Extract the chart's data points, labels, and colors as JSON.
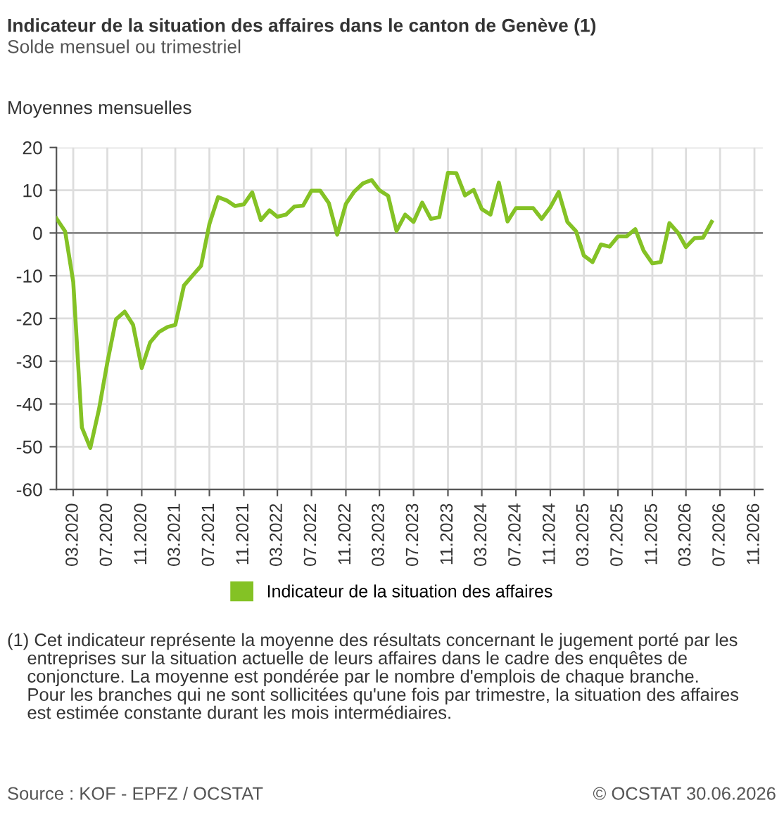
{
  "chart_data": {
    "type": "line",
    "title": "Indicateur de la situation des affaires dans le canton de Genève (1)",
    "subtitle": "Solde mensuel ou trimestriel",
    "ylabel": "Moyennes mensuelles",
    "x": [
      "2020-01",
      "2020-02",
      "2020-03",
      "2020-04",
      "2020-05",
      "2020-06",
      "2020-07",
      "2020-08",
      "2020-09",
      "2020-10",
      "2020-11",
      "2020-12",
      "2021-01",
      "2021-02",
      "2021-03",
      "2021-04",
      "2021-05",
      "2021-06",
      "2021-07",
      "2021-08",
      "2021-09",
      "2021-10",
      "2021-11",
      "2021-12",
      "2022-01",
      "2022-02",
      "2022-03",
      "2022-04",
      "2022-05",
      "2022-06",
      "2022-07",
      "2022-08",
      "2022-09",
      "2022-10",
      "2022-11",
      "2022-12",
      "2023-01",
      "2023-02",
      "2023-03",
      "2023-04",
      "2023-05",
      "2023-06",
      "2023-07",
      "2023-08",
      "2023-09",
      "2023-10",
      "2023-11",
      "2023-12",
      "2024-01",
      "2024-02",
      "2024-03",
      "2024-04",
      "2024-05",
      "2024-06",
      "2024-07",
      "2024-08",
      "2024-09",
      "2024-10",
      "2024-11",
      "2024-12",
      "2025-01",
      "2025-02",
      "2025-03",
      "2025-04",
      "2025-05",
      "2025-06",
      "2025-07",
      "2025-08",
      "2025-09",
      "2025-10",
      "2025-11",
      "2025-12",
      "2026-01",
      "2026-02",
      "2026-03",
      "2026-04",
      "2026-05",
      "2026-06"
    ],
    "series": [
      {
        "name": "Indicateur de la situation des affaires",
        "color": "#84c225",
        "values": [
          3.4,
          0.4,
          -11.4,
          -45.5,
          -50.3,
          -41.3,
          -30.3,
          -20.2,
          -18.4,
          -21.5,
          -31.6,
          -25.6,
          -23.2,
          -22.0,
          -21.5,
          -12.3,
          -10.0,
          -7.7,
          2.1,
          8.4,
          7.6,
          6.3,
          6.7,
          9.5,
          3.0,
          5.3,
          3.8,
          4.3,
          6.2,
          6.4,
          9.9,
          9.9,
          7.0,
          -0.4,
          6.8,
          9.7,
          11.6,
          12.4,
          10.0,
          8.7,
          0.5,
          4.3,
          2.6,
          7.1,
          3.3,
          3.7,
          14.1,
          14.0,
          8.8,
          10.1,
          5.6,
          4.3,
          11.8,
          2.7,
          5.8,
          5.8,
          5.8,
          3.3,
          6.0,
          9.6,
          2.6,
          0.4,
          -5.3,
          -6.8,
          -2.7,
          -3.2,
          -0.8,
          -0.8,
          0.9,
          -4.2,
          -7.1,
          -6.8,
          2.3,
          0.0,
          -3.3,
          -1.2,
          -1.1,
          2.6
        ]
      }
    ],
    "xlim": [
      "2020-01",
      "2026-12"
    ],
    "xticks": [
      {
        "value": "2020-03",
        "label": "03.2020"
      },
      {
        "value": "2020-07",
        "label": "07.2020"
      },
      {
        "value": "2020-11",
        "label": "11.2020"
      },
      {
        "value": "2021-03",
        "label": "03.2021"
      },
      {
        "value": "2021-07",
        "label": "07.2021"
      },
      {
        "value": "2021-11",
        "label": "11.2021"
      },
      {
        "value": "2022-03",
        "label": "03.2022"
      },
      {
        "value": "2022-07",
        "label": "07.2022"
      },
      {
        "value": "2022-11",
        "label": "11.2022"
      },
      {
        "value": "2023-03",
        "label": "03.2023"
      },
      {
        "value": "2023-07",
        "label": "07.2023"
      },
      {
        "value": "2023-11",
        "label": "11.2023"
      },
      {
        "value": "2024-03",
        "label": "03.2024"
      },
      {
        "value": "2024-07",
        "label": "07.2024"
      },
      {
        "value": "2024-11",
        "label": "11.2024"
      },
      {
        "value": "2025-03",
        "label": "03.2025"
      },
      {
        "value": "2025-07",
        "label": "07.2025"
      },
      {
        "value": "2025-11",
        "label": "11.2025"
      },
      {
        "value": "2026-03",
        "label": "03.2026"
      },
      {
        "value": "2026-07",
        "label": "07.2026"
      },
      {
        "value": "2026-11",
        "label": "11.2026"
      }
    ],
    "ylim": [
      -60,
      20
    ],
    "yticks": [
      -60,
      -50,
      -40,
      -30,
      -20,
      -10,
      0,
      10,
      20
    ],
    "ref_lines": [
      {
        "axis": "y",
        "value": 0,
        "color": "#888888"
      }
    ],
    "grid": true,
    "legend": "bottom",
    "marker": "none",
    "line_style": "solid",
    "annotations": [
      "(1) Cet indicateur représente la moyenne des résultats concernant le jugement porté par les\n    entreprises sur la situation actuelle de leurs affaires dans le cadre des enquêtes de\n    conjoncture. La moyenne est pondérée par le nombre d'emplois de chaque branche.\n    Pour les branches qui ne sont sollicitées qu'une fois par trimestre, la situation des affaires\n    est estimée constante durant les mois intermédiaires.",
      "Source : KOF - EPFZ / OCSTAT",
      "© OCSTAT 30.06.2026"
    ]
  }
}
